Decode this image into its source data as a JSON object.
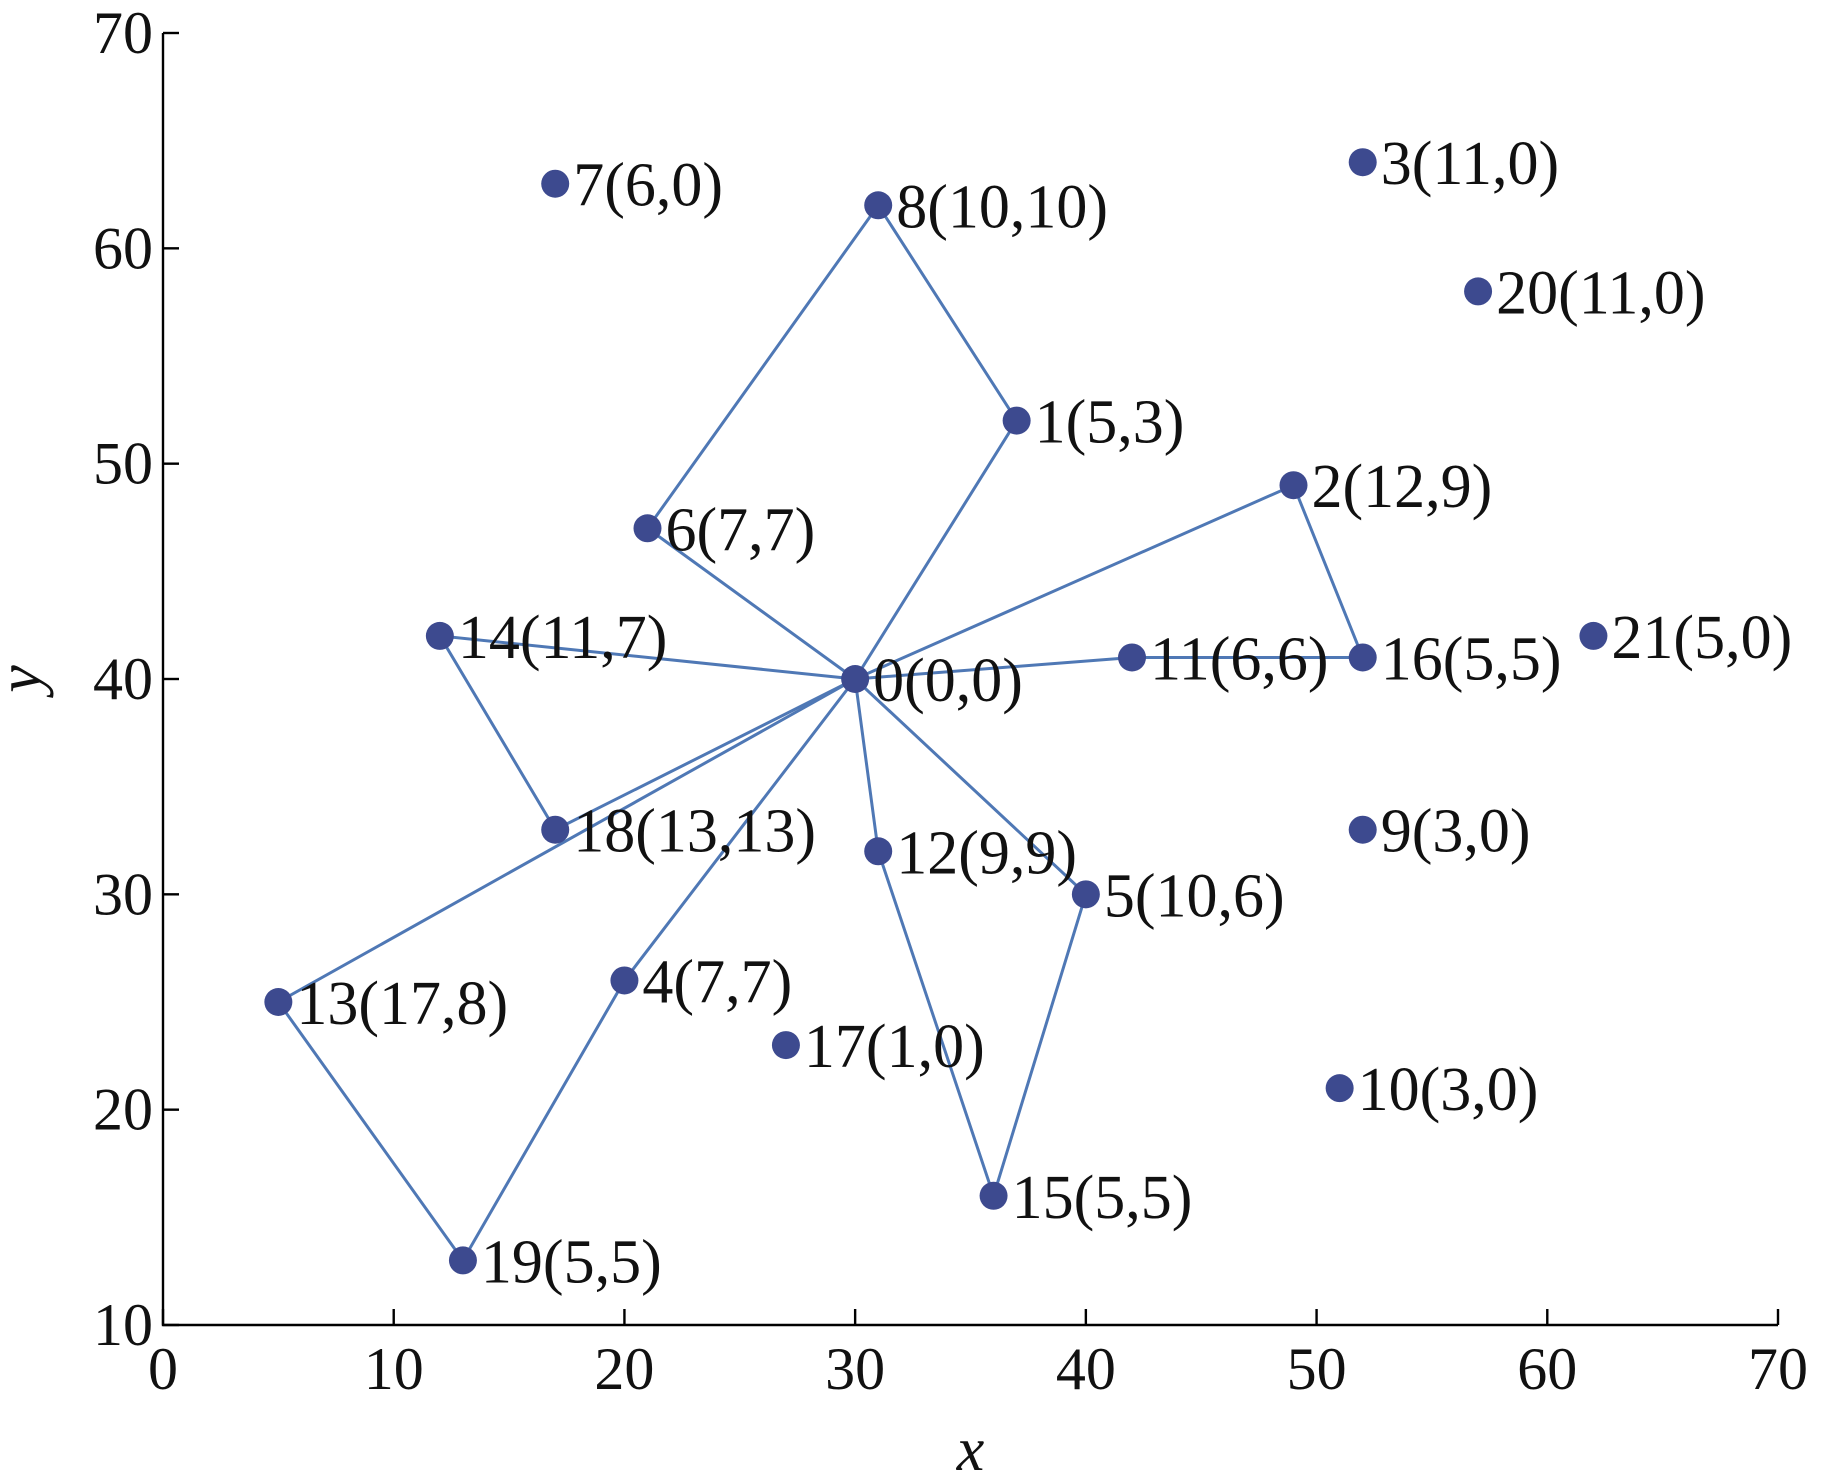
{
  "chart_data": {
    "type": "scatter",
    "title": "",
    "xlabel": "x",
    "ylabel": "y",
    "xlim": [
      0,
      70
    ],
    "ylim": [
      10,
      70
    ],
    "xticks": [
      "0",
      "10",
      "20",
      "30",
      "40",
      "50",
      "60",
      "70"
    ],
    "yticks": [
      "10",
      "20",
      "30",
      "40",
      "50",
      "60",
      "70"
    ],
    "grid": false,
    "legend": "none",
    "colors": {
      "point": "#3d4a8f",
      "edge": "#4f78b5"
    },
    "points": [
      {
        "id": "0",
        "x": 30,
        "y": 40,
        "label": "0(0,0)"
      },
      {
        "id": "1",
        "x": 37,
        "y": 52,
        "label": "1(5,3)"
      },
      {
        "id": "2",
        "x": 49,
        "y": 49,
        "label": "2(12,9)"
      },
      {
        "id": "3",
        "x": 52,
        "y": 64,
        "label": "3(11,0)"
      },
      {
        "id": "4",
        "x": 20,
        "y": 26,
        "label": "4(7,7)"
      },
      {
        "id": "5",
        "x": 40,
        "y": 30,
        "label": "5(10,6)"
      },
      {
        "id": "6",
        "x": 21,
        "y": 47,
        "label": "6(7,7)"
      },
      {
        "id": "7",
        "x": 17,
        "y": 63,
        "label": "7(6,0)"
      },
      {
        "id": "8",
        "x": 31,
        "y": 62,
        "label": "8(10,10)"
      },
      {
        "id": "9",
        "x": 52,
        "y": 33,
        "label": "9(3,0)"
      },
      {
        "id": "10",
        "x": 51,
        "y": 21,
        "label": "10(3,0)"
      },
      {
        "id": "11",
        "x": 42,
        "y": 41,
        "label": "11(6,6)"
      },
      {
        "id": "12",
        "x": 31,
        "y": 32,
        "label": "12(9,9)"
      },
      {
        "id": "13",
        "x": 5,
        "y": 25,
        "label": "13(17,8)"
      },
      {
        "id": "14",
        "x": 12,
        "y": 42,
        "label": "14(11,7)"
      },
      {
        "id": "15",
        "x": 36,
        "y": 16,
        "label": "15(5,5)"
      },
      {
        "id": "16",
        "x": 52,
        "y": 41,
        "label": "16(5,5)"
      },
      {
        "id": "17",
        "x": 27,
        "y": 23,
        "label": "17(1,0)"
      },
      {
        "id": "18",
        "x": 17,
        "y": 33,
        "label": "18(13,13)"
      },
      {
        "id": "19",
        "x": 13,
        "y": 13,
        "label": "19(5,5)"
      },
      {
        "id": "20",
        "x": 57,
        "y": 58,
        "label": "20(11,0)"
      },
      {
        "id": "21",
        "x": 62,
        "y": 42,
        "label": "21(5,0)"
      }
    ],
    "routes": [
      [
        "0",
        "6",
        "8",
        "1",
        "0"
      ],
      [
        "0",
        "2",
        "16",
        "11",
        "0"
      ],
      [
        "0",
        "5",
        "15",
        "12",
        "0"
      ],
      [
        "0",
        "4",
        "19",
        "13",
        "0"
      ],
      [
        "0",
        "18",
        "14",
        "0"
      ]
    ]
  }
}
